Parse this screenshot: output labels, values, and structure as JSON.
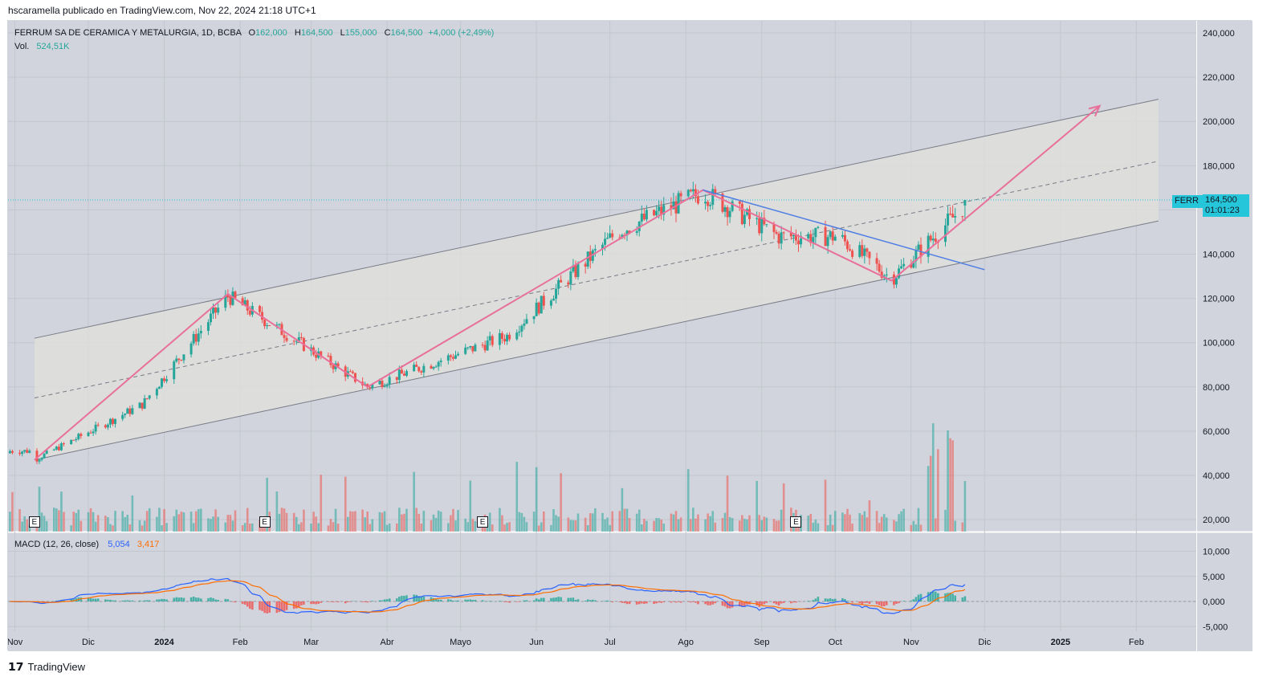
{
  "header": {
    "text": "hscaramella publicado en TradingView.com, Nov 22, 2024 21:18 UTC+1"
  },
  "legend": {
    "title": "FERRUM SA DE CERAMICA Y METALURGIA, 1D, BCBA",
    "o_label": "O",
    "o": "162,000",
    "h_label": "H",
    "h": "164,500",
    "l_label": "L",
    "l": "155,000",
    "c_label": "C",
    "c": "164,500",
    "change": "+4,000 (+2,49%)",
    "vol_label": "Vol.",
    "vol": "524,51K"
  },
  "macd": {
    "label": "MACD (12, 26, close)",
    "macd_value": "5,054",
    "signal_value": "3,417"
  },
  "price_tag": {
    "symbol": "FERR",
    "price": "164,500",
    "countdown": "01:01:23"
  },
  "earnings": {
    "label": "E"
  },
  "footer": {
    "logo_text": "TradingView"
  },
  "colors": {
    "up": "#26a69a",
    "down": "#ef5350",
    "macd": "#2962ff",
    "signal": "#ff6d00",
    "pattern": "#e8709a",
    "trend": "#4f7ee3",
    "channel": "#787b86",
    "bg": "#d1d4dc"
  },
  "chart_data": {
    "type": "candlestick",
    "price_axis": {
      "ticks": [
        "240,000",
        "220,000",
        "200,000",
        "180,000",
        "160,000",
        "140,000",
        "120,000",
        "100,000",
        "80,000",
        "60,000",
        "40,000",
        "20,000"
      ],
      "values": [
        240000,
        220000,
        200000,
        180000,
        160000,
        140000,
        120000,
        100000,
        80000,
        60000,
        40000,
        20000
      ]
    },
    "macd_axis": {
      "ticks": [
        "10,000",
        "5,000",
        "0,000",
        "-5,000"
      ],
      "values": [
        10000,
        5000,
        0,
        -5000
      ]
    },
    "time_axis": {
      "labels": [
        "Nov",
        "Dic",
        "2024",
        "Feb",
        "Mar",
        "Abr",
        "Mayo",
        "Jun",
        "Jul",
        "Ago",
        "Sep",
        "Oct",
        "Nov",
        "Dic",
        "2025",
        "Feb"
      ],
      "days": [
        -30,
        0,
        31,
        62,
        91,
        122,
        152,
        183,
        213,
        244,
        275,
        305,
        336,
        366,
        397,
        428
      ]
    },
    "earnings_days": [
      -22,
      72,
      161,
      289
    ],
    "key_points": [
      {
        "day": -22,
        "price": 47000
      },
      {
        "day": 22,
        "price": 72000
      },
      {
        "day": 57,
        "price": 121000
      },
      {
        "day": 114,
        "price": 80000
      },
      {
        "day": 171,
        "price": 103000
      },
      {
        "day": 216,
        "price": 150000
      },
      {
        "day": 251,
        "price": 168000
      },
      {
        "day": 282,
        "price": 148000
      },
      {
        "day": 306,
        "price": 148000
      },
      {
        "day": 328,
        "price": 129000
      },
      {
        "day": 358,
        "price": 162000
      }
    ],
    "channel": {
      "upper": [
        [
          -22,
          102000
        ],
        [
          437,
          210000
        ]
      ],
      "middle": [
        [
          -22,
          75000
        ],
        [
          437,
          182000
        ]
      ],
      "lower": [
        [
          -22,
          47000
        ],
        [
          437,
          155000
        ]
      ]
    },
    "pattern_path": [
      [
        -22,
        47000
      ],
      [
        57,
        122000
      ],
      [
        114,
        80000
      ],
      [
        251,
        169000
      ],
      [
        328,
        128000
      ],
      [
        413,
        207000
      ]
    ],
    "trend_line": [
      [
        251,
        169000
      ],
      [
        366,
        133000
      ]
    ],
    "current_price": 164500
  }
}
